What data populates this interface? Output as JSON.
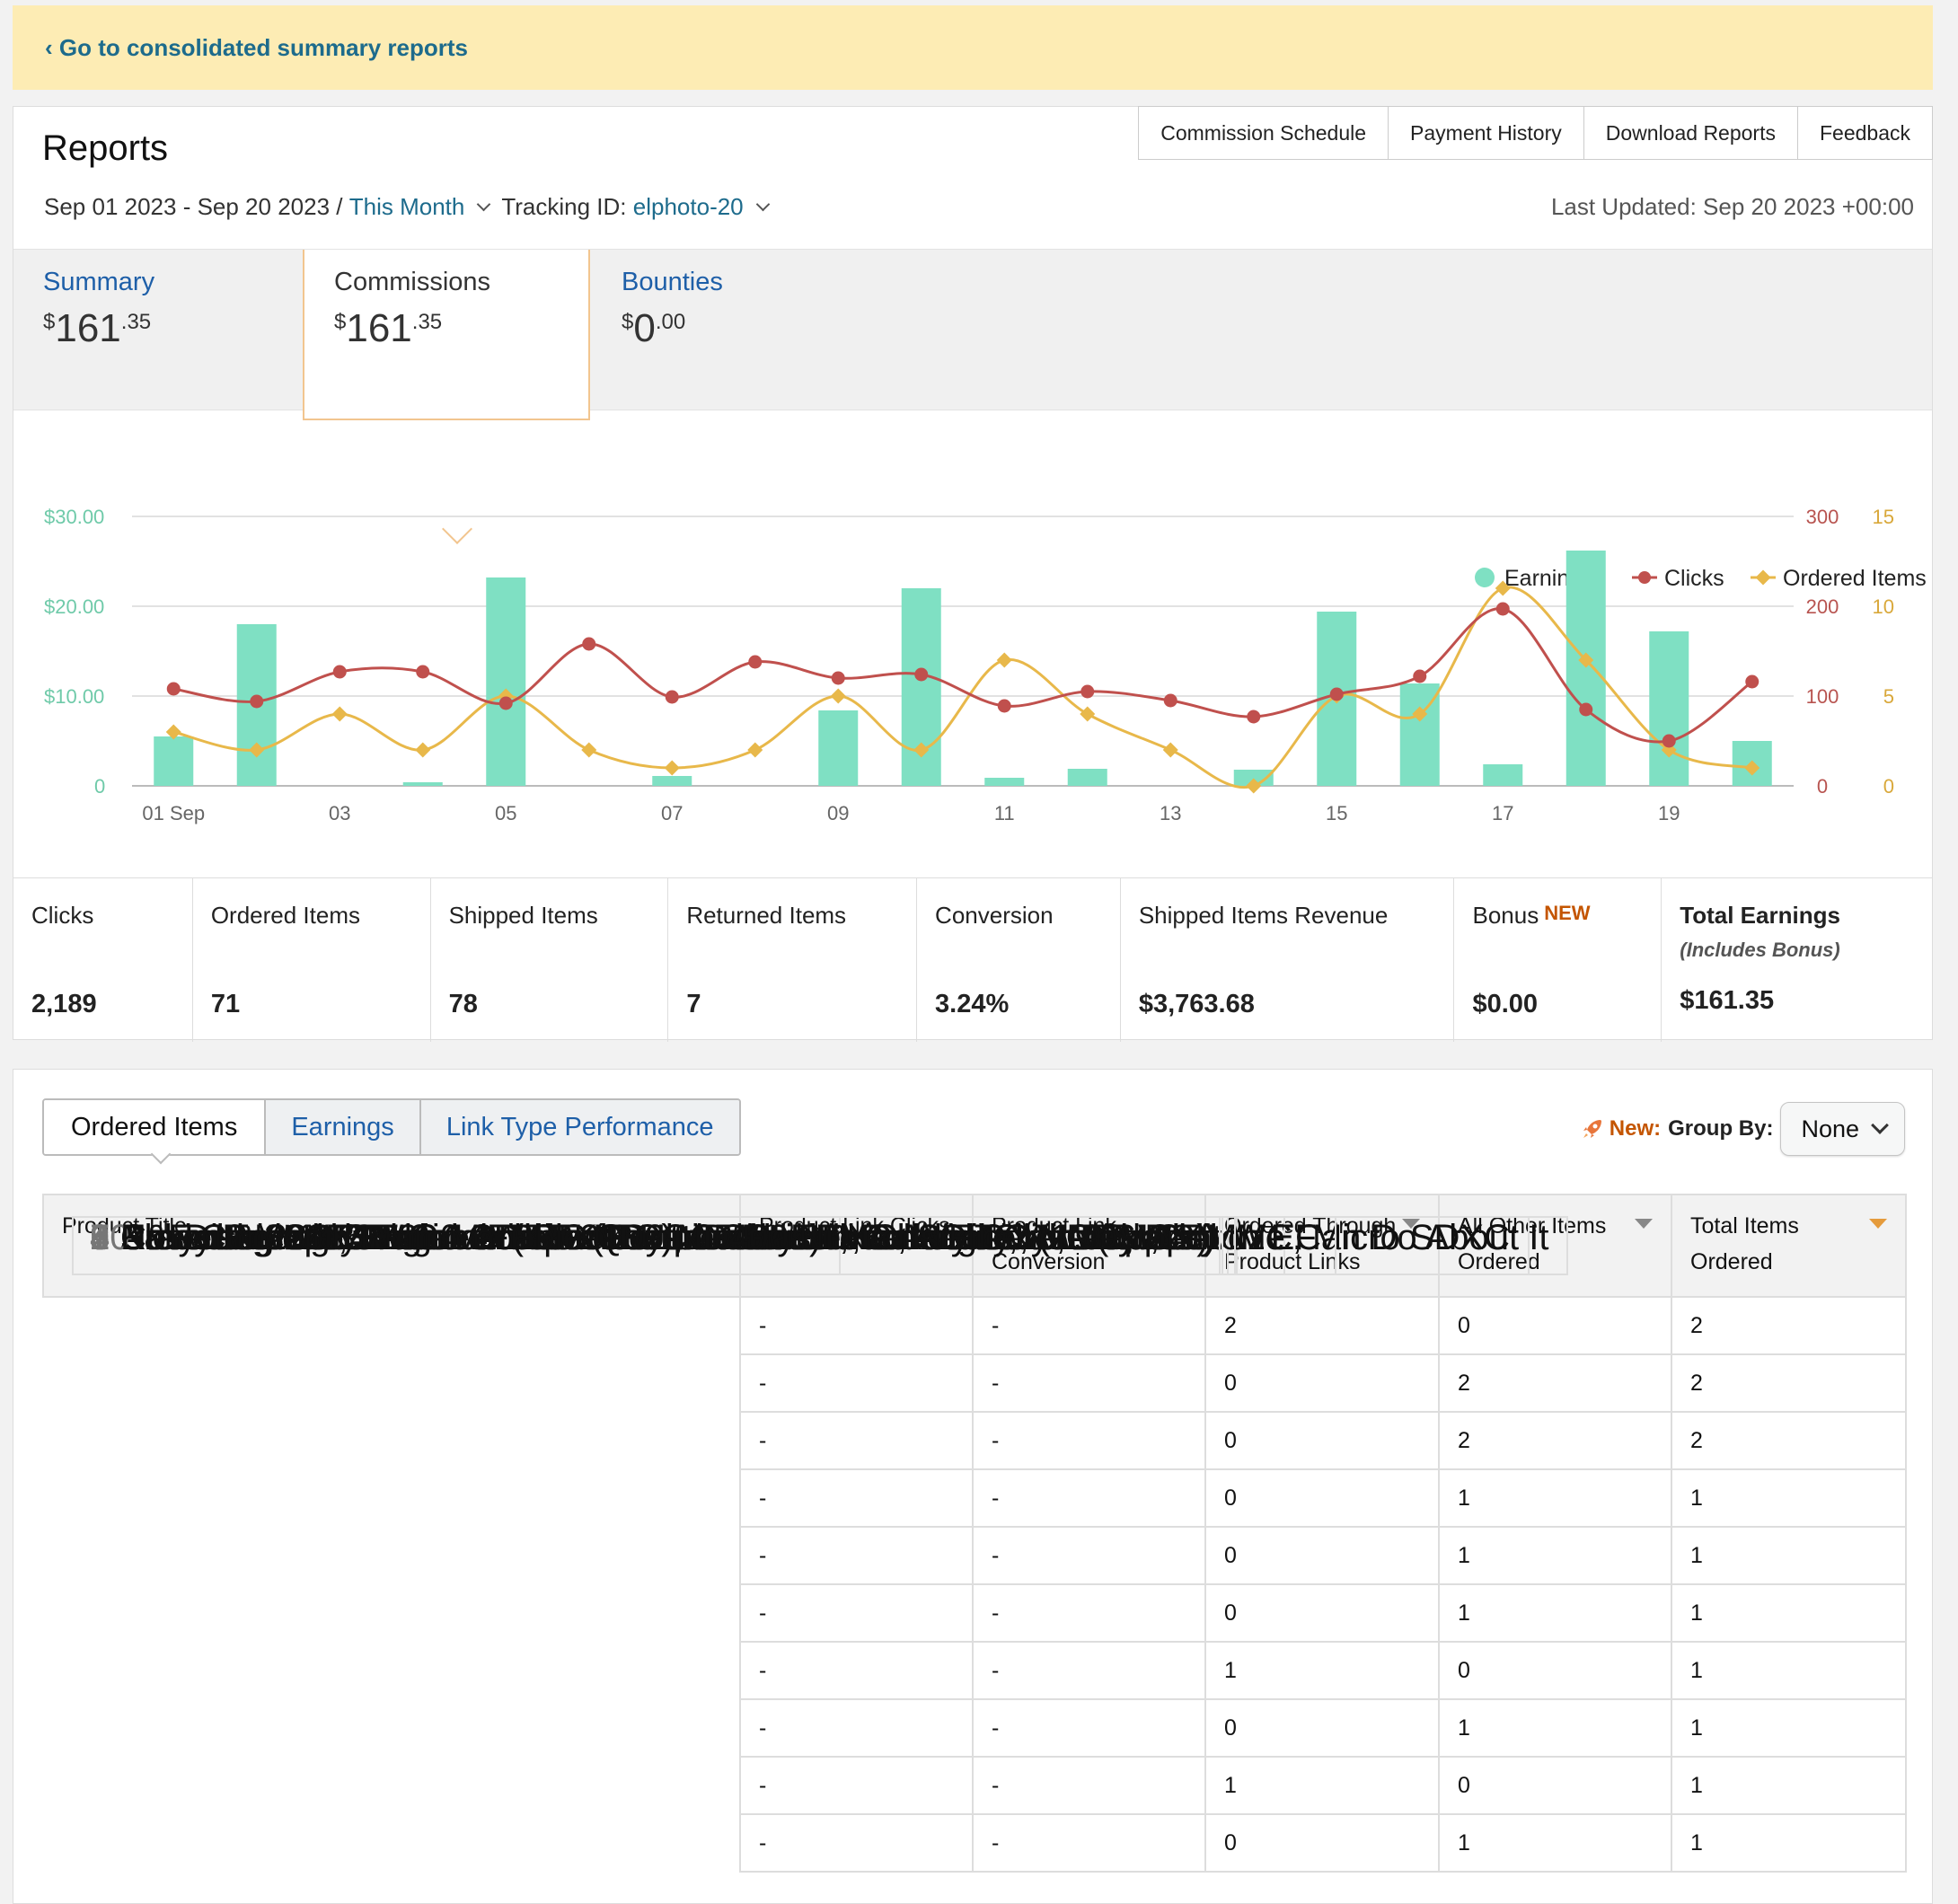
{
  "banner": {
    "back_link": "‹ Go to consolidated summary reports"
  },
  "header": {
    "title": "Reports",
    "nav": [
      "Commission Schedule",
      "Payment History",
      "Download Reports",
      "Feedback"
    ],
    "date_range": "Sep 01 2023 - Sep 20 2023 /",
    "period": "This Month",
    "tracking_label": "Tracking ID:",
    "tracking_id": "elphoto-20",
    "last_updated": "Last Updated: Sep 20 2023 +00:00"
  },
  "summary_tabs": [
    {
      "label": "Summary",
      "dollars": "161",
      "cents": ".35"
    },
    {
      "label": "Commissions",
      "dollars": "161",
      "cents": ".35"
    },
    {
      "label": "Bounties",
      "dollars": "0",
      "cents": ".00"
    }
  ],
  "colors": {
    "earnings": "#7fe0c3",
    "clicks": "#c0504d",
    "ordered": "#e8b84a",
    "link": "#1d6b8c"
  },
  "chart_data": {
    "type": "bar",
    "title": "",
    "legend": [
      "Earnings",
      "Clicks",
      "Ordered Items"
    ],
    "legend_position": "top-right",
    "x": [
      "01 Sep",
      "02",
      "03",
      "04",
      "05",
      "06",
      "07",
      "08",
      "09",
      "10",
      "11",
      "12",
      "13",
      "14",
      "15",
      "16",
      "17",
      "18",
      "19",
      "20"
    ],
    "x_tick_labels": [
      "01 Sep",
      "03",
      "05",
      "07",
      "09",
      "11",
      "13",
      "15",
      "17",
      "19"
    ],
    "y_left": {
      "ticks": [
        "$30.00",
        "$20.00",
        "$10.00",
        "0"
      ],
      "range": [
        0,
        30
      ]
    },
    "y_right_clicks": {
      "ticks": [
        "300",
        "200",
        "100",
        "0"
      ],
      "range": [
        0,
        300
      ]
    },
    "y_right_ordered": {
      "ticks": [
        "15",
        "10",
        "5",
        "0"
      ],
      "range": [
        0,
        15
      ]
    },
    "grid": true,
    "series": [
      {
        "name": "Earnings",
        "type": "bar",
        "axis": "left",
        "values": [
          5.5,
          18.0,
          0,
          0.4,
          23.2,
          0,
          1.1,
          0,
          8.4,
          22.0,
          0.9,
          1.9,
          0,
          1.8,
          19.4,
          11.4,
          2.4,
          26.2,
          17.2,
          5.0
        ]
      },
      {
        "name": "Clicks",
        "type": "line",
        "axis": "right_clicks",
        "values": [
          108,
          94,
          127,
          127,
          92,
          158,
          99,
          138,
          120,
          124,
          89,
          105,
          95,
          77,
          102,
          122,
          197,
          85,
          50,
          116
        ]
      },
      {
        "name": "Ordered Items",
        "type": "line",
        "axis": "right_ordered",
        "values": [
          3,
          2,
          4,
          2,
          5,
          2,
          1,
          2,
          5,
          2,
          7,
          4,
          2,
          0,
          5,
          4,
          11,
          7,
          2,
          1
        ]
      }
    ]
  },
  "metrics": [
    {
      "label": "Clicks",
      "value": "2,189"
    },
    {
      "label": "Ordered Items",
      "value": "71"
    },
    {
      "label": "Shipped Items",
      "value": "78"
    },
    {
      "label": "Returned Items",
      "value": "7"
    },
    {
      "label": "Conversion",
      "value": "3.24%"
    },
    {
      "label": "Shipped Items Revenue",
      "value": "$3,763.68"
    },
    {
      "label": "Bonus",
      "badge": "NEW",
      "value": "$0.00"
    },
    {
      "label": "Total Earnings",
      "sublabel": "(Includes Bonus)",
      "value": "$161.35"
    }
  ],
  "table_tabs": [
    "Ordered Items",
    "Earnings",
    "Link Type Performance"
  ],
  "group_by": {
    "new_label": "New:",
    "label": "Group By:",
    "value": "None"
  },
  "table": {
    "columns": [
      "Product Title",
      "Product Link Clicks",
      "Product Link Conversion",
      "Ordered Through Product Links",
      "All Other Items Ordered",
      "Total Items Ordered"
    ],
    "rows": [
      {
        "n": "1",
        "title": "Case Logic DCB-304 Compact System/Hybrid Camera Case (Black)",
        "clicks": "-",
        "conv": "-",
        "through": "2",
        "other": "0",
        "total": "2"
      },
      {
        "n": "2",
        "title": "Anker 2-in-1 USB 3.0 SD Card Reader for SDXC, SDHC, MMC, RS-MMC, Micro SDXC",
        "clicks": "-",
        "conv": "-",
        "through": "0",
        "other": "2",
        "total": "2"
      },
      {
        "n": "3",
        "title": "Crayola Model Magic - White (1oz), 75 Count, Bulk Clay, Air Dry Clay",
        "clicks": "-",
        "conv": "-",
        "through": "0",
        "other": "2",
        "total": "2"
      },
      {
        "n": "4",
        "title": "Never Enough: When Achievement Culture Becomes Toxic-and What We Can Do About It",
        "clicks": "-",
        "conv": "-",
        "through": "0",
        "other": "1",
        "total": "1"
      },
      {
        "n": "5",
        "title": "Rosie Revere, Engineer (The Questioneers)",
        "clicks": "-",
        "conv": "-",
        "through": "0",
        "other": "1",
        "total": "1"
      },
      {
        "n": "6",
        "title": "Aleene's 23473 Fabric Fusion Permanent Fabric Adhesive ,Clear, 4 fl oz",
        "clicks": "-",
        "conv": "-",
        "through": "0",
        "other": "1",
        "total": "1"
      },
      {
        "n": "7",
        "title": "Samyang SY14M-C 14mm F2.8 Ultra Wide Fixed Angle Lens for Canon EF",
        "clicks": "-",
        "conv": "-",
        "through": "1",
        "other": "0",
        "total": "1"
      },
      {
        "n": "8",
        "title": "Brown & Haley Almond DARK ROCA Canister, Individually Wrapped",
        "clicks": "-",
        "conv": "-",
        "through": "0",
        "other": "1",
        "total": "1"
      },
      {
        "n": "9",
        "title": "SanDisk 32GB Extreme PRO CompactFlash Memory Card UDMA 7",
        "clicks": "-",
        "conv": "-",
        "through": "1",
        "other": "0",
        "total": "1"
      },
      {
        "n": "10",
        "title": "K&F Concept 67mm Variable ND2-ND400 ND Lens Filter (1-9 Stops)",
        "clicks": "-",
        "conv": "-",
        "through": "0",
        "other": "1",
        "total": "1"
      }
    ]
  }
}
